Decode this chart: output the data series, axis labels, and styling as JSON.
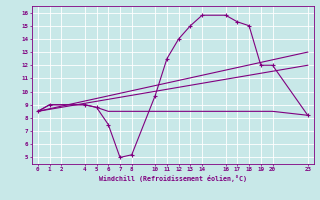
{
  "xlabel": "Windchill (Refroidissement éolien,°C)",
  "bg_color": "#c8e8e8",
  "line_color": "#800080",
  "grid_color": "#ffffff",
  "xlim": [
    -0.5,
    23.5
  ],
  "ylim": [
    4.5,
    16.5
  ],
  "yticks": [
    5,
    6,
    7,
    8,
    9,
    10,
    11,
    12,
    13,
    14,
    15,
    16
  ],
  "xticks": [
    0,
    1,
    2,
    4,
    5,
    6,
    7,
    8,
    10,
    11,
    12,
    13,
    14,
    16,
    17,
    18,
    19,
    20,
    23
  ],
  "lines": [
    {
      "x": [
        0,
        1,
        4,
        5,
        6,
        7,
        8,
        10,
        11,
        12,
        13,
        14,
        16,
        17,
        18,
        19,
        20,
        23
      ],
      "y": [
        8.5,
        9.0,
        9.0,
        8.8,
        7.5,
        5.0,
        5.2,
        9.7,
        12.5,
        14.0,
        15.0,
        15.8,
        15.8,
        15.3,
        15.0,
        12.0,
        12.0,
        8.2
      ],
      "marker": "+"
    },
    {
      "x": [
        0,
        23
      ],
      "y": [
        8.5,
        13.0
      ],
      "marker": null
    },
    {
      "x": [
        0,
        23
      ],
      "y": [
        8.5,
        12.0
      ],
      "marker": null
    },
    {
      "x": [
        0,
        1,
        2,
        4,
        5,
        6,
        8,
        10,
        11,
        12,
        13,
        14,
        16,
        17,
        18,
        19,
        20,
        23
      ],
      "y": [
        8.5,
        9.0,
        9.0,
        9.0,
        8.8,
        8.5,
        8.5,
        8.5,
        8.5,
        8.5,
        8.5,
        8.5,
        8.5,
        8.5,
        8.5,
        8.5,
        8.5,
        8.2
      ],
      "marker": null
    }
  ]
}
